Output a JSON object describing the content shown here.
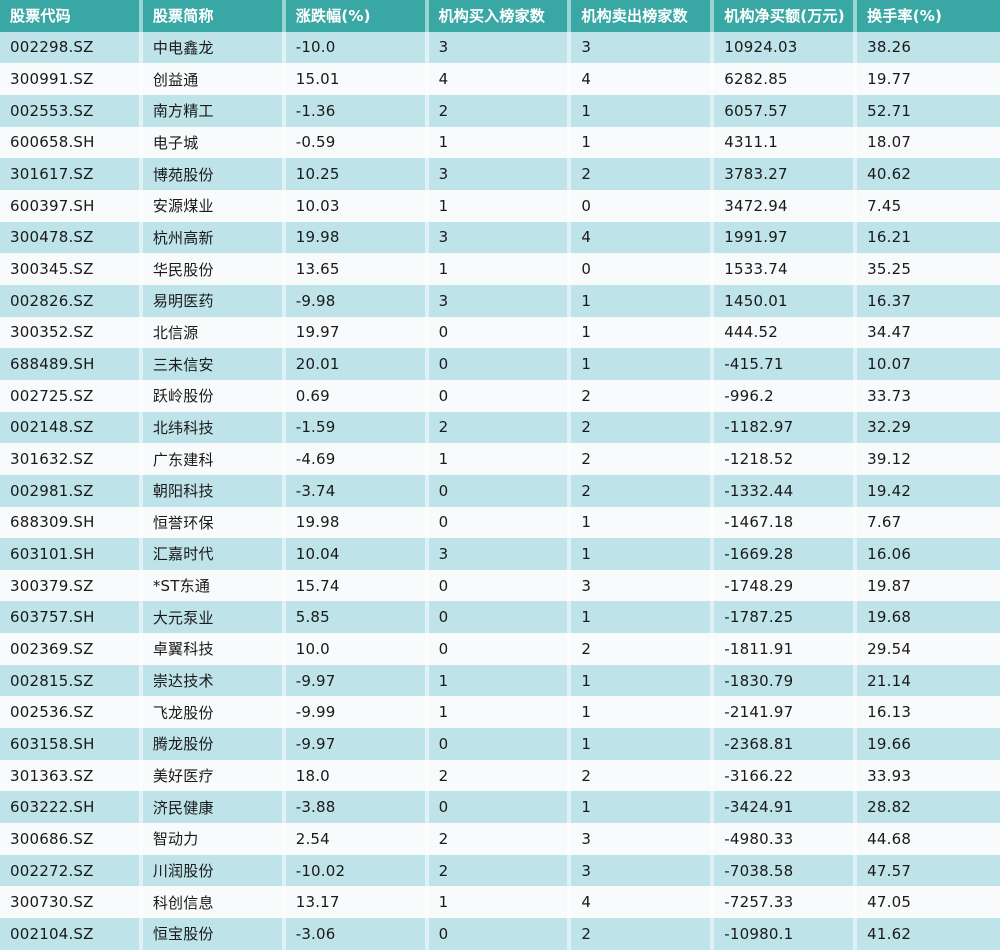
{
  "colors": {
    "header_bg": "#39a8a5",
    "header_text": "#ffffff",
    "row_alt": "#bee3e9",
    "row_base": "#f8fafb",
    "cell_divider": "rgba(255,255,255,0.5)",
    "text": "#1a1a1a"
  },
  "chart_data": {
    "type": "table",
    "title": "",
    "columns": [
      "股票代码",
      "股票简称",
      "涨跌幅(%)",
      "机构买入榜家数",
      "机构卖出榜家数",
      "机构净买额(万元)",
      "换手率(%)"
    ],
    "rows": [
      [
        "002298.SZ",
        "中电鑫龙",
        "-10.0",
        "3",
        "3",
        "10924.03",
        "38.26"
      ],
      [
        "300991.SZ",
        "创益通",
        "15.01",
        "4",
        "4",
        "6282.85",
        "19.77"
      ],
      [
        "002553.SZ",
        "南方精工",
        "-1.36",
        "2",
        "1",
        "6057.57",
        "52.71"
      ],
      [
        "600658.SH",
        "电子城",
        "-0.59",
        "1",
        "1",
        "4311.1",
        "18.07"
      ],
      [
        "301617.SZ",
        "博苑股份",
        "10.25",
        "3",
        "2",
        "3783.27",
        "40.62"
      ],
      [
        "600397.SH",
        "安源煤业",
        "10.03",
        "1",
        "0",
        "3472.94",
        "7.45"
      ],
      [
        "300478.SZ",
        "杭州高新",
        "19.98",
        "3",
        "4",
        "1991.97",
        "16.21"
      ],
      [
        "300345.SZ",
        "华民股份",
        "13.65",
        "1",
        "0",
        "1533.74",
        "35.25"
      ],
      [
        "002826.SZ",
        "易明医药",
        "-9.98",
        "3",
        "1",
        "1450.01",
        "16.37"
      ],
      [
        "300352.SZ",
        "北信源",
        "19.97",
        "0",
        "1",
        "444.52",
        "34.47"
      ],
      [
        "688489.SH",
        "三未信安",
        "20.01",
        "0",
        "1",
        "-415.71",
        "10.07"
      ],
      [
        "002725.SZ",
        "跃岭股份",
        "0.69",
        "0",
        "2",
        "-996.2",
        "33.73"
      ],
      [
        "002148.SZ",
        "北纬科技",
        "-1.59",
        "2",
        "2",
        "-1182.97",
        "32.29"
      ],
      [
        "301632.SZ",
        "广东建科",
        "-4.69",
        "1",
        "2",
        "-1218.52",
        "39.12"
      ],
      [
        "002981.SZ",
        "朝阳科技",
        "-3.74",
        "0",
        "2",
        "-1332.44",
        "19.42"
      ],
      [
        "688309.SH",
        "恒誉环保",
        "19.98",
        "0",
        "1",
        "-1467.18",
        "7.67"
      ],
      [
        "603101.SH",
        "汇嘉时代",
        "10.04",
        "3",
        "1",
        "-1669.28",
        "16.06"
      ],
      [
        "300379.SZ",
        "*ST东通",
        "15.74",
        "0",
        "3",
        "-1748.29",
        "19.87"
      ],
      [
        "603757.SH",
        "大元泵业",
        "5.85",
        "0",
        "1",
        "-1787.25",
        "19.68"
      ],
      [
        "002369.SZ",
        "卓翼科技",
        "10.0",
        "0",
        "2",
        "-1811.91",
        "29.54"
      ],
      [
        "002815.SZ",
        "崇达技术",
        "-9.97",
        "1",
        "1",
        "-1830.79",
        "21.14"
      ],
      [
        "002536.SZ",
        "飞龙股份",
        "-9.99",
        "1",
        "1",
        "-2141.97",
        "16.13"
      ],
      [
        "603158.SH",
        "腾龙股份",
        "-9.97",
        "0",
        "1",
        "-2368.81",
        "19.66"
      ],
      [
        "301363.SZ",
        "美好医疗",
        "18.0",
        "2",
        "2",
        "-3166.22",
        "33.93"
      ],
      [
        "603222.SH",
        "济民健康",
        "-3.88",
        "0",
        "1",
        "-3424.91",
        "28.82"
      ],
      [
        "300686.SZ",
        "智动力",
        "2.54",
        "2",
        "3",
        "-4980.33",
        "44.68"
      ],
      [
        "002272.SZ",
        "川润股份",
        "-10.02",
        "2",
        "3",
        "-7038.58",
        "47.57"
      ],
      [
        "300730.SZ",
        "科创信息",
        "13.17",
        "1",
        "4",
        "-7257.33",
        "47.05"
      ],
      [
        "002104.SZ",
        "恒宝股份",
        "-3.06",
        "0",
        "2",
        "-10980.1",
        "41.62"
      ]
    ]
  }
}
